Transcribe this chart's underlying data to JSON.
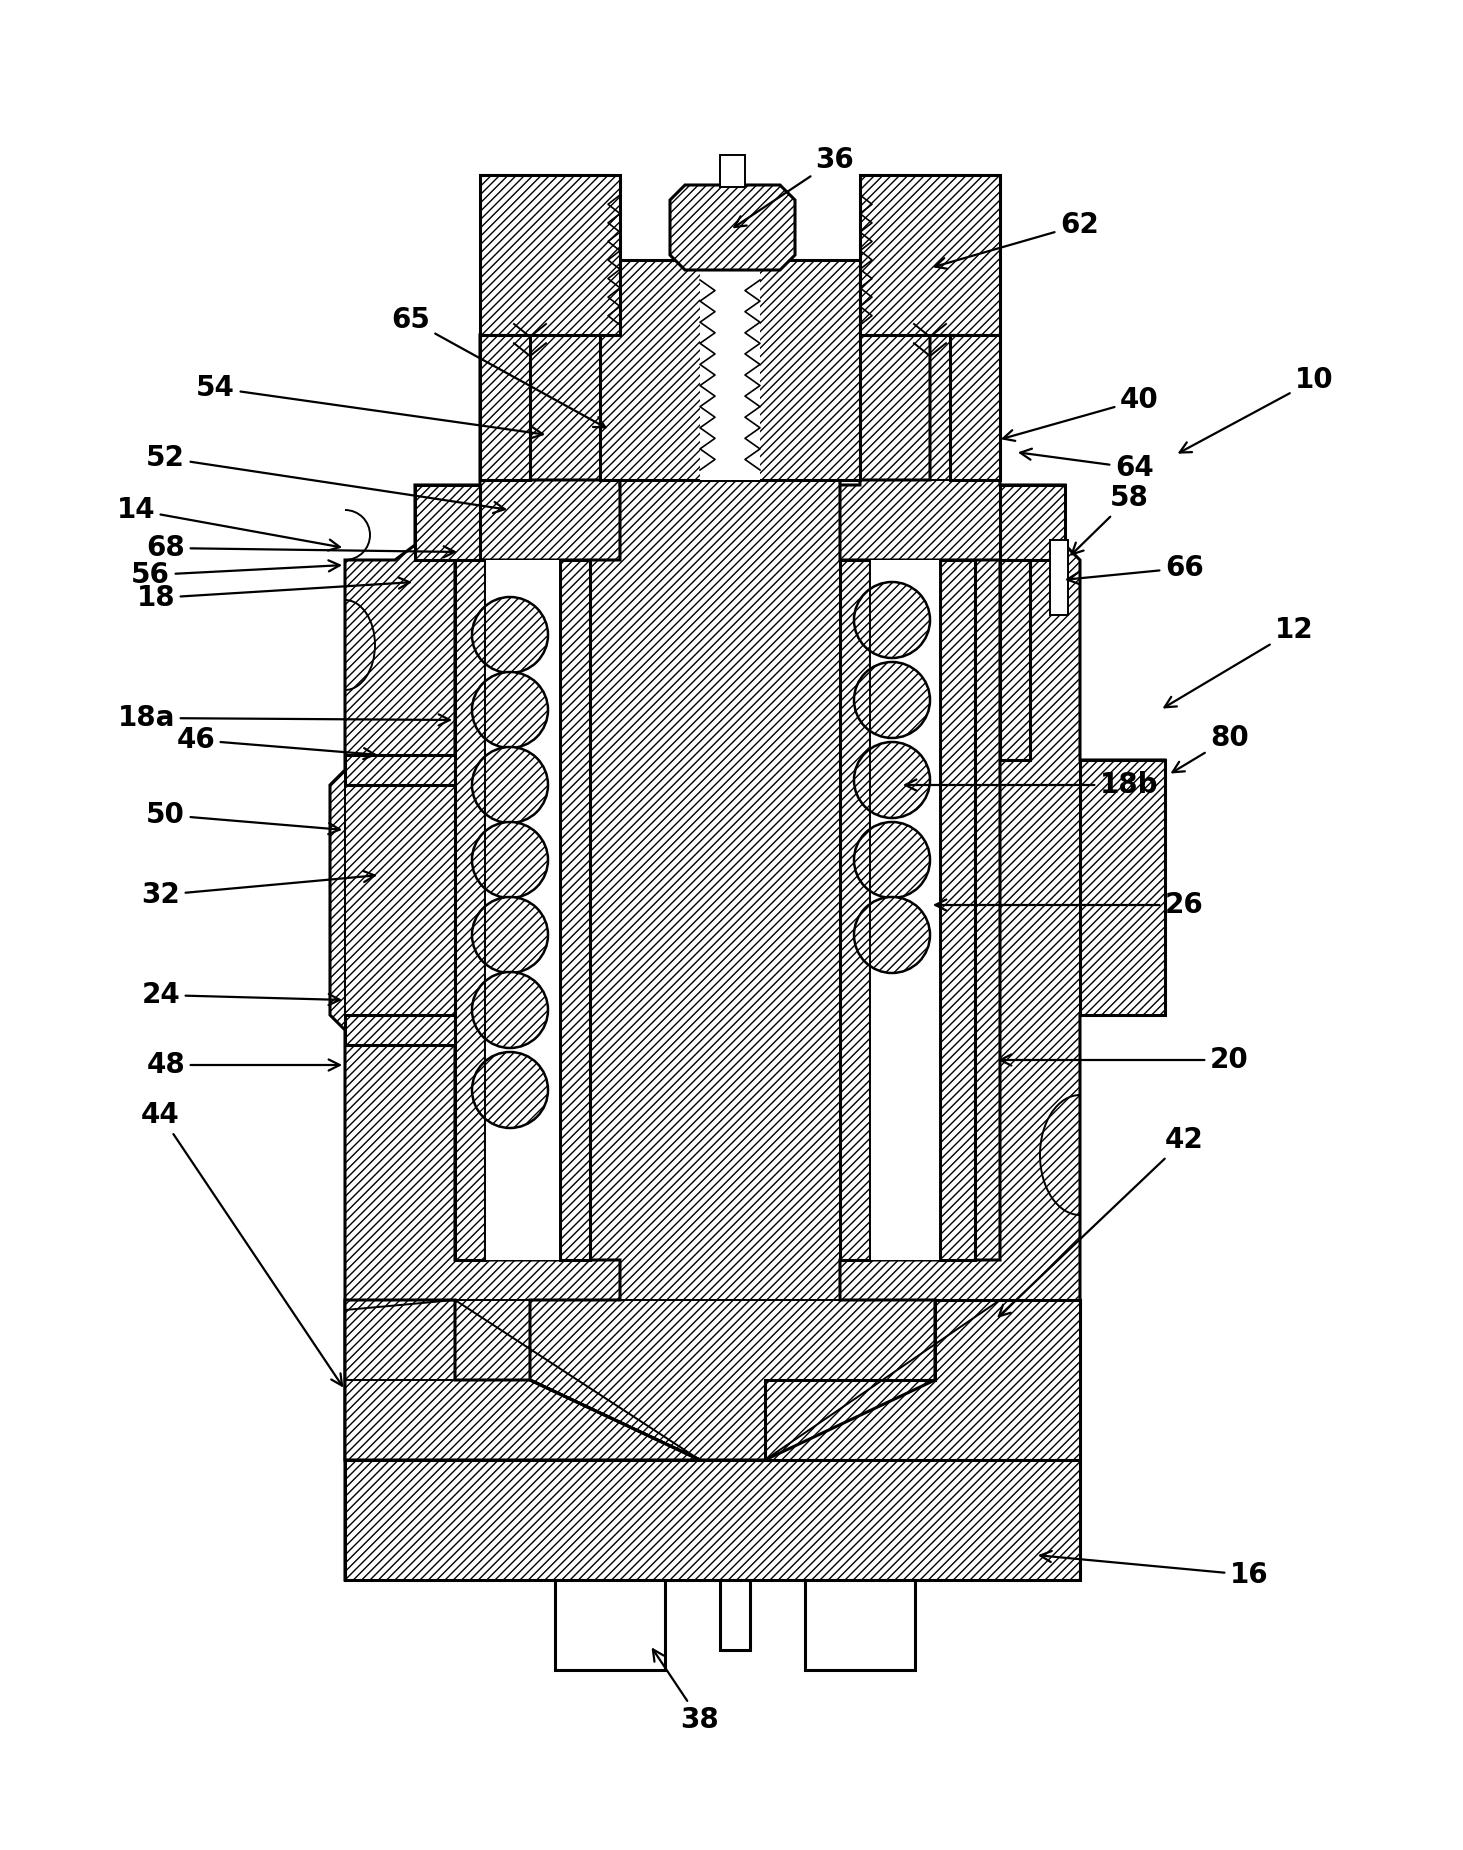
{
  "bg_color": "#ffffff",
  "line_color": "#000000",
  "figsize": [
    14.63,
    18.5
  ],
  "dpi": 100,
  "labels": [
    [
      "10",
      1295,
      380,
      1175,
      455,
      "left"
    ],
    [
      "12",
      1275,
      630,
      1160,
      710,
      "left"
    ],
    [
      "14",
      155,
      510,
      345,
      548,
      "right"
    ],
    [
      "16",
      1230,
      1575,
      1035,
      1555,
      "left"
    ],
    [
      "18",
      175,
      598,
      415,
      582,
      "right"
    ],
    [
      "18a",
      175,
      718,
      455,
      720,
      "right"
    ],
    [
      "18b",
      1100,
      785,
      900,
      785,
      "left"
    ],
    [
      "20",
      1210,
      1060,
      995,
      1060,
      "left"
    ],
    [
      "24",
      180,
      995,
      345,
      1000,
      "right"
    ],
    [
      "26",
      1165,
      905,
      930,
      905,
      "left"
    ],
    [
      "32",
      180,
      895,
      380,
      875,
      "right"
    ],
    [
      "36",
      835,
      160,
      730,
      230,
      "center"
    ],
    [
      "38",
      700,
      1720,
      650,
      1645,
      "center"
    ],
    [
      "40",
      1120,
      400,
      998,
      440,
      "left"
    ],
    [
      "42",
      1165,
      1140,
      995,
      1320,
      "left"
    ],
    [
      "44",
      180,
      1115,
      345,
      1390,
      "right"
    ],
    [
      "46",
      215,
      740,
      380,
      755,
      "right"
    ],
    [
      "48",
      185,
      1065,
      345,
      1065,
      "right"
    ],
    [
      "50",
      185,
      815,
      345,
      830,
      "right"
    ],
    [
      "52",
      185,
      458,
      510,
      510,
      "right"
    ],
    [
      "54",
      235,
      388,
      548,
      435,
      "right"
    ],
    [
      "56",
      170,
      575,
      345,
      565,
      "right"
    ],
    [
      "58",
      1110,
      498,
      1068,
      558,
      "left"
    ],
    [
      "62",
      1060,
      225,
      930,
      268,
      "left"
    ],
    [
      "64",
      1115,
      468,
      1015,
      452,
      "left"
    ],
    [
      "65",
      430,
      320,
      610,
      430,
      "right"
    ],
    [
      "66",
      1165,
      568,
      1062,
      580,
      "left"
    ],
    [
      "68",
      185,
      548,
      460,
      552,
      "right"
    ],
    [
      "80",
      1210,
      738,
      1168,
      775,
      "left"
    ]
  ]
}
